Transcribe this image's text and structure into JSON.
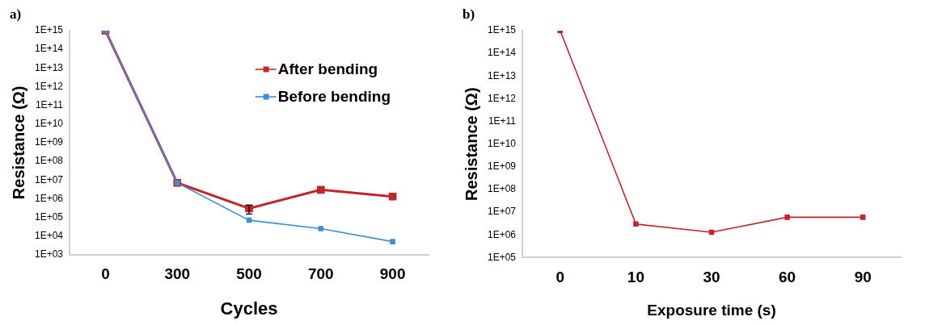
{
  "chart_data": [
    {
      "type": "line",
      "annotations": [
        "a)"
      ],
      "xlabel": "Cycles",
      "ylabel": "Resistance (Ω)",
      "categories": [
        "0",
        "300",
        "500",
        "700",
        "900"
      ],
      "log": "y",
      "marker": "square",
      "legend": "top right",
      "grid": false,
      "ylim": [
        1000.0,
        1000000000000000.0
      ],
      "yticks": [
        {
          "value": 1000.0,
          "label": "1E+03"
        },
        {
          "value": 10000.0,
          "label": "1E+04"
        },
        {
          "value": 100000.0,
          "label": "1E+05"
        },
        {
          "value": 1000000.0,
          "label": "1E+06"
        },
        {
          "value": 10000000.0,
          "label": "1E+07"
        },
        {
          "value": 100000000.0,
          "label": "1E+08"
        },
        {
          "value": 1000000000.0,
          "label": "1E+09"
        },
        {
          "value": 10000000000.0,
          "label": "1E+10"
        },
        {
          "value": 100000000000.0,
          "label": "1E+11"
        },
        {
          "value": 1000000000000.0,
          "label": "1E+12"
        },
        {
          "value": 10000000000000.0,
          "label": "1E+13"
        },
        {
          "value": 100000000000000.0,
          "label": "1E+14"
        },
        {
          "value": 1000000000000000.0,
          "label": "1E+15"
        }
      ],
      "series": [
        {
          "name": "After bending",
          "color": "#c0272d",
          "values": [
            1000000000000000.0,
            7000000.0,
            300000.0,
            3000000.0,
            1300000.0
          ],
          "errors": [
            null,
            null,
            [
              150000.0,
              450000.0
            ],
            null,
            null
          ]
        },
        {
          "name": "Before bending",
          "color": "#3c8fd4",
          "values": [
            1000000000000000.0,
            7000000.0,
            70000.0,
            25000.0,
            5000.0
          ]
        }
      ]
    },
    {
      "type": "line",
      "annotations": [
        "b)"
      ],
      "xlabel": "Exposure time (s)",
      "ylabel": "Resistance (Ω)",
      "categories": [
        "0",
        "10",
        "30",
        "60",
        "90"
      ],
      "log": "y",
      "marker": "square",
      "grid": false,
      "ylim": [
        100000.0,
        1000000000000000.0
      ],
      "yticks": [
        {
          "value": 100000.0,
          "label": "1E+05"
        },
        {
          "value": 1000000.0,
          "label": "1E+06"
        },
        {
          "value": 10000000.0,
          "label": "1E+07"
        },
        {
          "value": 100000000.0,
          "label": "1E+08"
        },
        {
          "value": 1000000000.0,
          "label": "1E+09"
        },
        {
          "value": 10000000000.0,
          "label": "1E+10"
        },
        {
          "value": 100000000000.0,
          "label": "1E+11"
        },
        {
          "value": 1000000000000.0,
          "label": "1E+12"
        },
        {
          "value": 10000000000000.0,
          "label": "1E+13"
        },
        {
          "value": 100000000000000.0,
          "label": "1E+14"
        },
        {
          "value": 1000000000000000.0,
          "label": "1E+15"
        }
      ],
      "series": [
        {
          "color": "#c0272d",
          "values": [
            1000000000000000.0,
            3000000.0,
            1300000.0,
            6000000.0,
            6000000.0
          ]
        }
      ]
    }
  ]
}
